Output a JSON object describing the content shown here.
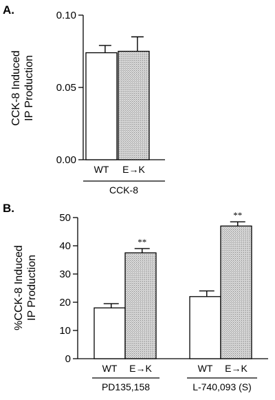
{
  "chart_data": [
    {
      "type": "bar",
      "panel": "A.",
      "ylabel_lines": [
        "CCK-8 Induced",
        "IP Production"
      ],
      "ylim": [
        0,
        0.1
      ],
      "yticks": [
        "0.00",
        "0.05",
        "0.10"
      ],
      "ytick_values": [
        0,
        0.05,
        0.1
      ],
      "categories": [
        "WT",
        "E→K"
      ],
      "group_label": "CCK-8",
      "values": [
        0.074,
        0.075
      ],
      "errors": [
        0.005,
        0.01
      ],
      "fills": [
        "#ffffff",
        "#cccccc"
      ]
    },
    {
      "type": "bar",
      "panel": "B.",
      "ylabel_lines": [
        "%CCK-8 Induced",
        "IP Production"
      ],
      "ylim": [
        0,
        50
      ],
      "yticks": [
        "0",
        "10",
        "20",
        "30",
        "40",
        "50"
      ],
      "ytick_values": [
        0,
        10,
        20,
        30,
        40,
        50
      ],
      "groups": [
        {
          "label": "PD135,158",
          "categories": [
            "WT",
            "E→K"
          ],
          "values": [
            18,
            37.5
          ],
          "errors": [
            1.5,
            1.5
          ],
          "significance": [
            "",
            "**"
          ]
        },
        {
          "label": "L-740,093 (S)",
          "categories": [
            "WT",
            "E→K"
          ],
          "values": [
            22,
            47
          ],
          "errors": [
            2,
            1.5
          ],
          "significance": [
            "",
            "**"
          ]
        }
      ],
      "fills": [
        "#ffffff",
        "#cccccc"
      ]
    }
  ]
}
